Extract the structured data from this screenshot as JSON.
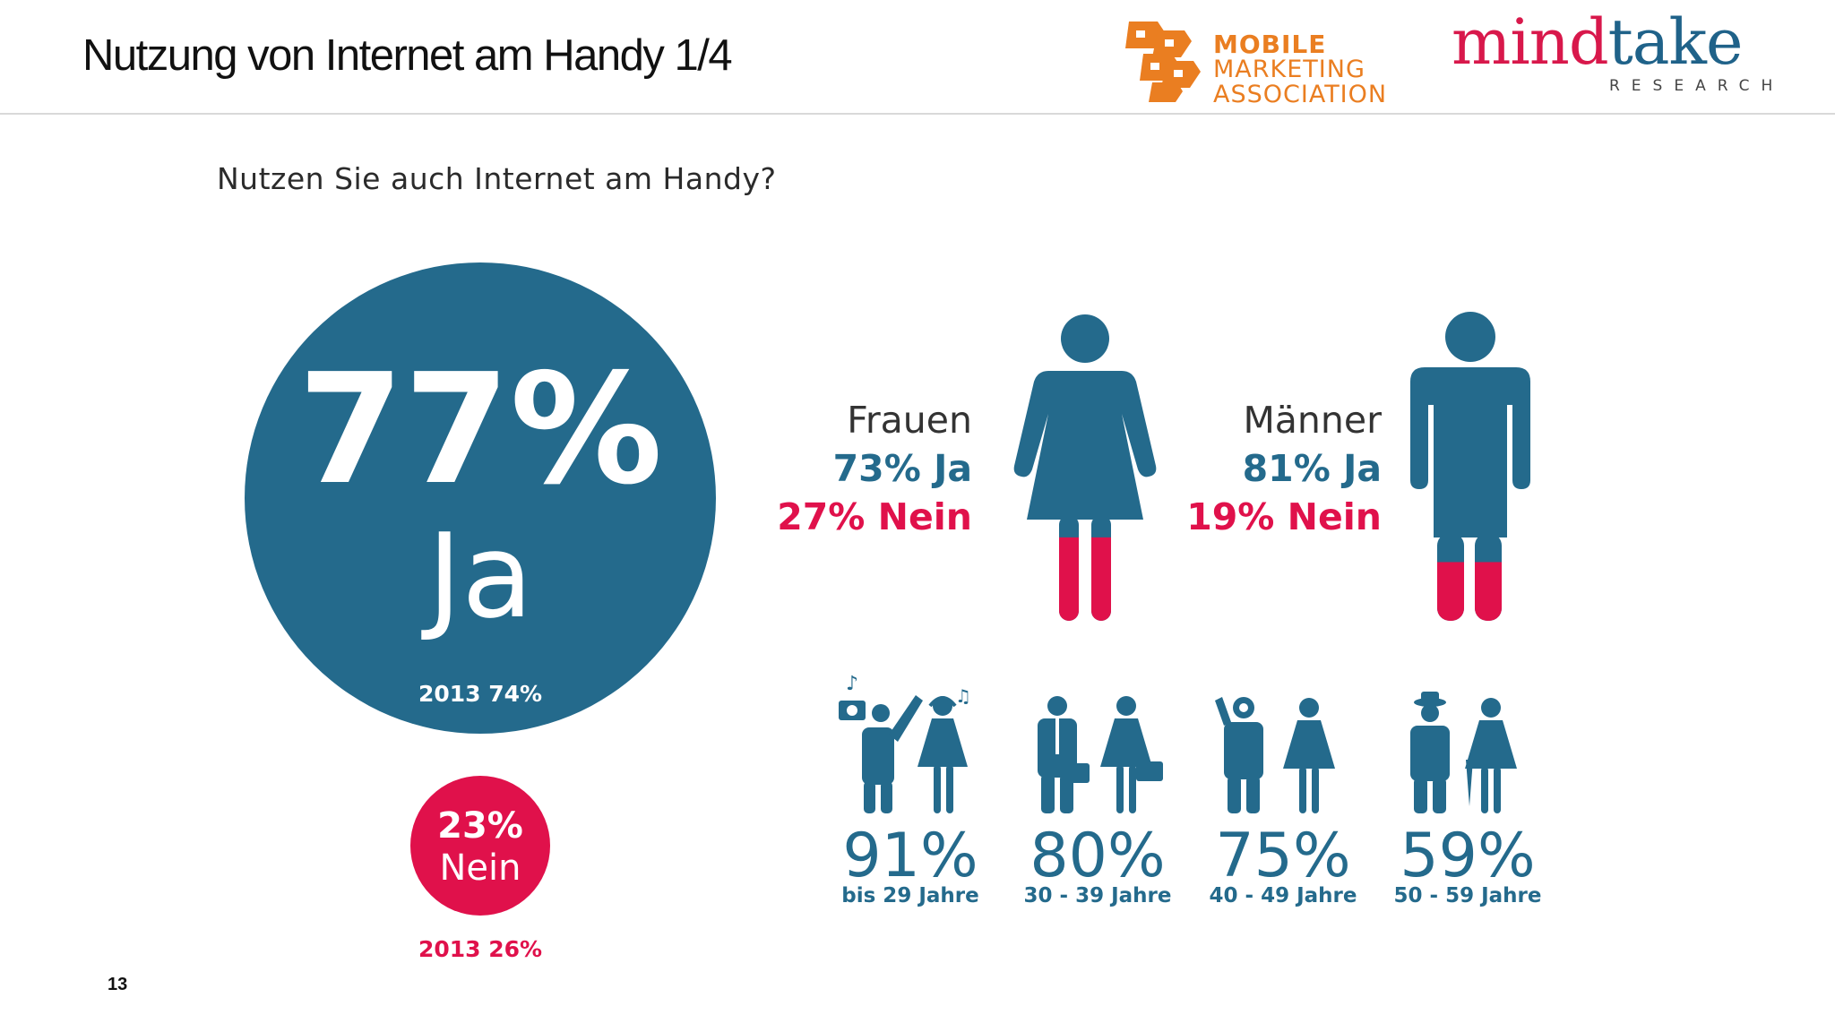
{
  "slide": {
    "title": "Nutzung von Internet am Handy 1/4",
    "page_number": "13",
    "question": "Nutzen Sie auch Internet am Handy?"
  },
  "logos": {
    "mma_line1": "MOBILE",
    "mma_line2": "MARKETING",
    "mma_line3": "ASSOCIATION",
    "mindtake_a": "mind",
    "mindtake_b": "take",
    "mindtake_sub": "RESEARCH"
  },
  "colors": {
    "blue": "#246a8c",
    "red": "#e0114b",
    "mma_orange": "#ea7e21"
  },
  "chart_data": [
    {
      "type": "pie",
      "categories": [
        "Ja",
        "Nein"
      ],
      "values": [
        77,
        23
      ],
      "labels": [
        "77%",
        "Ja",
        "23%",
        "Nein"
      ],
      "previous_year_labels": [
        "2013 74%",
        "2013 26%"
      ]
    },
    {
      "type": "bar",
      "categories": [
        "Frauen",
        "Männer"
      ],
      "series": [
        {
          "name": "Ja",
          "values": [
            73,
            81
          ]
        },
        {
          "name": "Nein",
          "values": [
            27,
            19
          ]
        }
      ],
      "value_labels": [
        {
          "yes": "73% Ja",
          "no": "27% Nein"
        },
        {
          "yes": "81% Ja",
          "no": "19% Nein"
        }
      ]
    },
    {
      "type": "bar",
      "categories": [
        "bis 29 Jahre",
        "30 - 39 Jahre",
        "40 - 49 Jahre",
        "50 - 59 Jahre"
      ],
      "values": [
        91,
        80,
        75,
        59
      ],
      "value_labels": [
        "91%",
        "80%",
        "75%",
        "59%"
      ]
    }
  ]
}
